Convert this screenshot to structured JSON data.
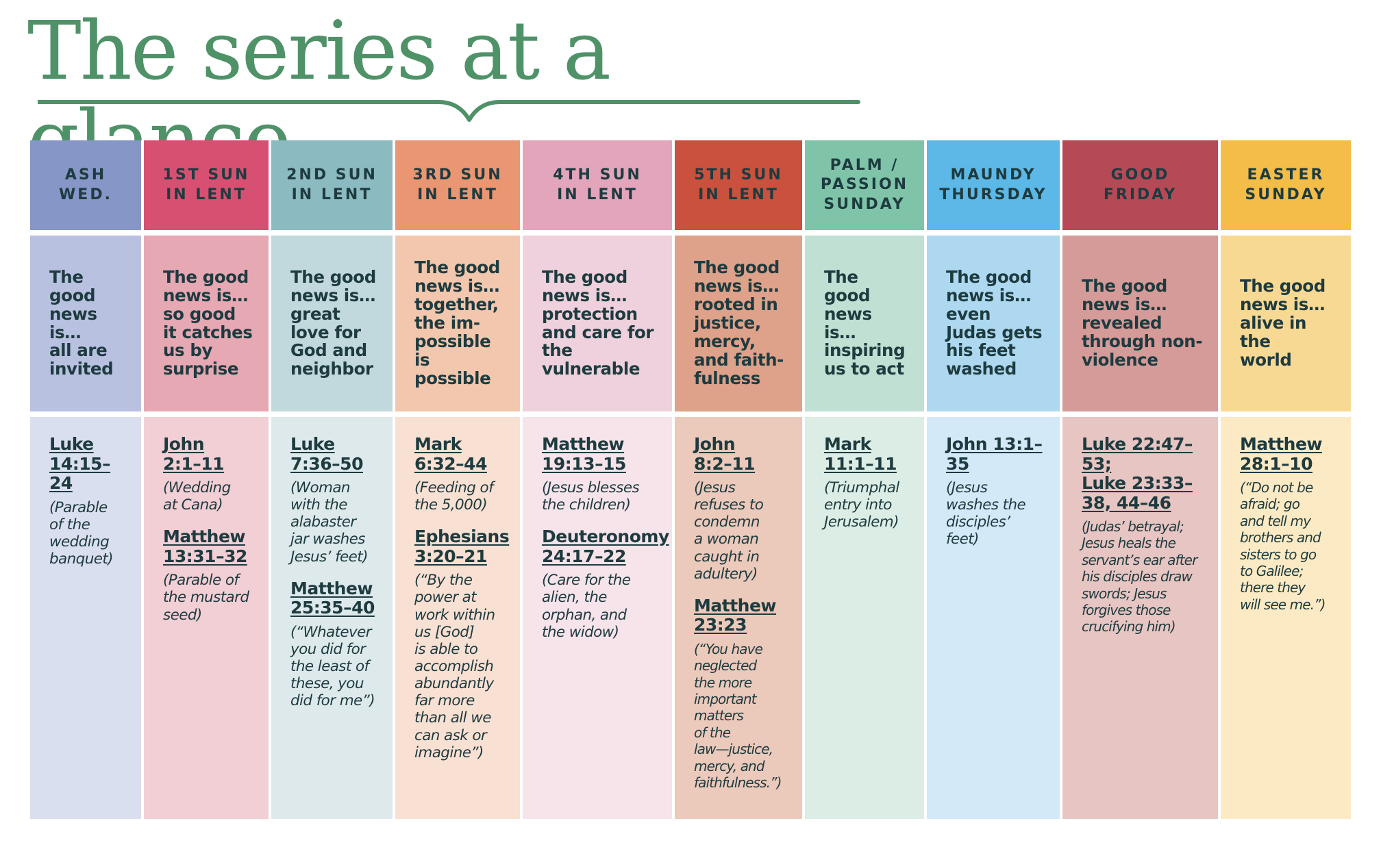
{
  "title": "The series at a glance",
  "colors": {
    "title_green": "#4f9268",
    "text_dark": "#1e3b3f"
  },
  "columns": [
    {
      "header": "ASH\nWED.",
      "header_color": "#8596c7",
      "news_color": "#b9c1e1",
      "refs_color": "#dadfef",
      "news": "The\ngood\nnews\nis…\nall are\ninvited",
      "refs": [
        {
          "ref": "Luke\n14:15–24",
          "note": "(Parable\nof the\nwedding\nbanquet)"
        }
      ]
    },
    {
      "header": "1ST SUN\nIN LENT",
      "header_color": "#d75072",
      "news_color": "#e6a8b3",
      "refs_color": "#f2cfd5",
      "news": "The good\nnews is…\nso good\nit catches\nus by\nsurprise",
      "refs": [
        {
          "ref": "John\n2:1–11",
          "note": "(Wedding\nat Cana)"
        },
        {
          "ref": "Matthew\n13:31–32",
          "note": "(Parable of\nthe mustard\nseed)"
        }
      ]
    },
    {
      "header": "2ND SUN\nIN LENT",
      "header_color": "#8bbac0",
      "news_color": "#c1d9dc",
      "refs_color": "#dde9eb",
      "news": "The good\nnews is…\ngreat\nlove for\nGod and\nneighbor",
      "refs": [
        {
          "ref": "Luke\n7:36–50",
          "note": "(Woman\nwith the\nalabaster\njar washes\nJesus’ feet)"
        },
        {
          "ref": "Matthew\n25:35–40",
          "note": "(“Whatever\nyou did for\nthe least of\nthese, you\ndid for me”)"
        }
      ]
    },
    {
      "header": "3RD SUN\nIN LENT",
      "header_color": "#eb9672",
      "news_color": "#f3c7ad",
      "refs_color": "#f8e0d3",
      "news": "The good\nnews is…\ntogether,\nthe im-\npossible is\npossible",
      "refs": [
        {
          "ref": "Mark\n6:32–44",
          "note": "(Feeding of\nthe 5,000)"
        },
        {
          "ref": "Ephesians\n3:20–21",
          "note": "(“By the\npower at\nwork within\nus [God]\nis able to\naccomplish\nabundantly\nfar more\nthan all we\ncan ask or\nimagine”)"
        }
      ]
    },
    {
      "header": "4TH SUN\nIN LENT",
      "header_color": "#e2a5bc",
      "news_color": "#eed1dc",
      "refs_color": "#f6e4ea",
      "news": "The good\nnews is…\nprotection\nand care for\nthe vulnerable",
      "refs": [
        {
          "ref": "Matthew\n19:13–15",
          "note": "(Jesus blesses\nthe children)"
        },
        {
          "ref": "Deuteronomy\n24:17–22",
          "note": "(Care for the\nalien, the\norphan, and\nthe widow)"
        }
      ]
    },
    {
      "header": "5TH SUN\nIN LENT",
      "header_color": "#c9513d",
      "news_color": "#dea18a",
      "refs_color": "#ebc9bb",
      "news": "The good\nnews is…\nrooted in\njustice,\nmercy,\nand faith-\nfulness",
      "refs": [
        {
          "ref": "John\n8:2–11",
          "note": "(Jesus\nrefuses to\ncondemn\na woman\ncaught in\nadultery)"
        },
        {
          "ref": "Matthew\n23:23",
          "note": "(“You have\nneglected\nthe more\nimportant\nmatters\nof the\nlaw—justice,\nmercy, and\nfaithfulness.”)"
        }
      ]
    },
    {
      "header": "PALM /\nPASSION\nSUNDAY",
      "header_color": "#7fc3a9",
      "news_color": "#bfe0d2",
      "refs_color": "#dcede5",
      "news": "The good\nnews is…\ninspiring\nus to act",
      "refs": [
        {
          "ref": "Mark\n11:1–11",
          "note": "(Triumphal\nentry into\nJerusalem)"
        }
      ]
    },
    {
      "header": "MAUNDY\nTHURSDAY",
      "header_color": "#5cb8e6",
      "news_color": "#add8f0",
      "refs_color": "#d3e9f7",
      "news": "The good\nnews is…\neven\nJudas gets\nhis feet\nwashed",
      "refs": [
        {
          "ref": "John 13:1–35",
          "note": "(Jesus\nwashes the\ndisciples’\nfeet)"
        }
      ]
    },
    {
      "header": "GOOD\nFRIDAY",
      "header_color": "#b54a56",
      "news_color": "#d59b98",
      "refs_color": "#e6c5c2",
      "news": "The good\nnews is…\nrevealed\nthrough non-\nviolence",
      "refs": [
        {
          "ref": "Luke 22:47–53;\nLuke 23:33–\n38, 44–46",
          "note": "(Judas’ betrayal;\nJesus heals the\nservant’s ear after\nhis disciples draw\nswords; Jesus\nforgives those\ncrucifying him)"
        }
      ]
    },
    {
      "header": "EASTER\nSUNDAY",
      "header_color": "#f3bd48",
      "news_color": "#f8d993",
      "refs_color": "#fbeac4",
      "news": "The good\nnews is…\nalive in the\nworld",
      "refs": [
        {
          "ref": "Matthew\n28:1–10",
          "note": "(“Do not be\nafraid; go\nand tell my\nbrothers and\nsisters to go\nto Galilee;\nthere they\nwill see me.”)"
        }
      ]
    }
  ]
}
